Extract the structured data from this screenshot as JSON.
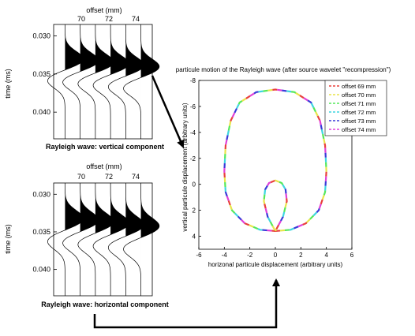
{
  "chart_data": [
    {
      "type": "line",
      "subtype": "seismic-wiggle",
      "title": "offset (mm)",
      "caption": "Rayleigh wave: vertical component",
      "ylabel": "time (ms)",
      "x_tick_labels": [
        "70",
        "72",
        "74"
      ],
      "y_ticks": [
        0.03,
        0.035,
        0.04
      ],
      "y_tick_labels": [
        "0.030",
        "0.035",
        "0.040"
      ],
      "ylim": [
        0.0285,
        0.0435
      ],
      "traces": [
        {
          "trace": 1,
          "pos_peak_time": 0.0331,
          "neg_peak_time": 0.0358
        },
        {
          "trace": 2,
          "pos_peak_time": 0.0333,
          "neg_peak_time": 0.036
        },
        {
          "trace": 3,
          "pos_peak_time": 0.0335,
          "neg_peak_time": 0.0362
        },
        {
          "trace": 4,
          "pos_peak_time": 0.0337,
          "neg_peak_time": 0.0364
        },
        {
          "trace": 5,
          "pos_peak_time": 0.0339,
          "neg_peak_time": 0.0366
        },
        {
          "trace": 6,
          "pos_peak_time": 0.0341,
          "neg_peak_time": 0.0368
        }
      ]
    },
    {
      "type": "line",
      "subtype": "seismic-wiggle",
      "title": "offset (mm)",
      "caption": "Rayleigh wave: horizontal component",
      "ylabel": "time (ms)",
      "x_tick_labels": [
        "70",
        "72",
        "74"
      ],
      "y_ticks": [
        0.03,
        0.035,
        0.04
      ],
      "y_tick_labels": [
        "0.030",
        "0.035",
        "0.040"
      ],
      "ylim": [
        0.0285,
        0.0435
      ],
      "traces": [
        {
          "trace": 1,
          "pos_peak_time": 0.0333,
          "neg_peak_time": 0.0362
        },
        {
          "trace": 2,
          "pos_peak_time": 0.0335,
          "neg_peak_time": 0.0364
        },
        {
          "trace": 3,
          "pos_peak_time": 0.0337,
          "neg_peak_time": 0.0366
        },
        {
          "trace": 4,
          "pos_peak_time": 0.0339,
          "neg_peak_time": 0.0368
        },
        {
          "trace": 5,
          "pos_peak_time": 0.0341,
          "neg_peak_time": 0.037
        },
        {
          "trace": 6,
          "pos_peak_time": 0.0343,
          "neg_peak_time": 0.0372
        }
      ]
    },
    {
      "type": "line",
      "subtype": "particle-motion",
      "title": "particule motion of the Rayleigh wave (after source wavelet \"recompression\")",
      "xlabel": "horizonal particule displacement (arbitrary units)",
      "ylabel": "vertical particule displacement (arbitrary units)",
      "xlim": [
        -6,
        6
      ],
      "ylim": [
        -8,
        5
      ],
      "y_reversed": true,
      "x_ticks": [
        -6,
        -4,
        -2,
        0,
        2,
        4,
        6
      ],
      "y_ticks": [
        -8,
        -6,
        -4,
        -2,
        0,
        2,
        4
      ],
      "legend_position": "top-right",
      "series": [
        {
          "name": "offset 69 mm",
          "color": "#e8403c"
        },
        {
          "name": "offset 70 mm",
          "color": "#e8e44a"
        },
        {
          "name": "offset 71 mm",
          "color": "#55e85a"
        },
        {
          "name": "offset 72 mm",
          "color": "#3fd6e0"
        },
        {
          "name": "offset 73 mm",
          "color": "#3a3ad8"
        },
        {
          "name": "offset 74 mm",
          "color": "#e040d8"
        }
      ],
      "path": [
        [
          0.0,
          3.6
        ],
        [
          1.2,
          3.5
        ],
        [
          2.4,
          3.0
        ],
        [
          3.4,
          2.0
        ],
        [
          3.9,
          0.6
        ],
        [
          4.0,
          -1.0
        ],
        [
          3.9,
          -3.0
        ],
        [
          3.5,
          -4.9
        ],
        [
          2.8,
          -6.3
        ],
        [
          1.5,
          -7.1
        ],
        [
          0.0,
          -7.3
        ],
        [
          -1.5,
          -7.1
        ],
        [
          -2.8,
          -6.3
        ],
        [
          -3.5,
          -4.9
        ],
        [
          -3.9,
          -3.0
        ],
        [
          -4.0,
          -1.0
        ],
        [
          -3.9,
          0.6
        ],
        [
          -3.4,
          2.0
        ],
        [
          -2.4,
          3.0
        ],
        [
          -1.2,
          3.5
        ],
        [
          0.0,
          3.6
        ],
        [
          -0.6,
          2.5
        ],
        [
          -0.9,
          1.3
        ],
        [
          -0.8,
          0.4
        ],
        [
          -0.5,
          -0.1
        ],
        [
          0.0,
          -0.3
        ],
        [
          0.5,
          -0.1
        ],
        [
          0.8,
          0.4
        ],
        [
          0.9,
          1.3
        ],
        [
          0.6,
          2.5
        ],
        [
          0.0,
          3.6
        ]
      ]
    }
  ]
}
